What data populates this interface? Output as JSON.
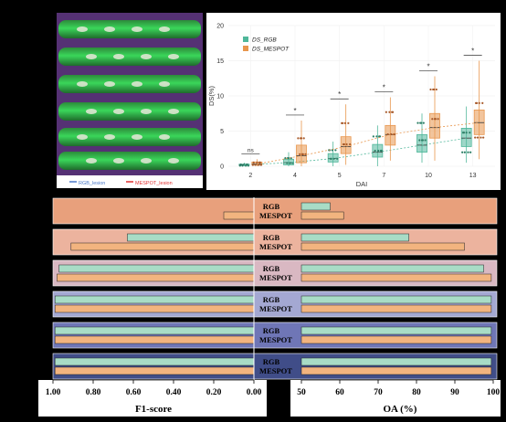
{
  "photo": {
    "legend": [
      {
        "label": "RGB_lesion",
        "color": "#4a78c8"
      },
      {
        "label": "MESPOT_lesion",
        "color": "#e03030"
      }
    ]
  },
  "colors": {
    "rgb": "#4fb79a",
    "mespot": "#e8964d",
    "rgb_bar": "#a8dcc6",
    "mespot_bar": "#f2b47f"
  },
  "chart_data": [
    {
      "type": "box",
      "xlabel": "DAI",
      "ylabel": "DS(%)",
      "categories": [
        "2",
        "4",
        "5",
        "7",
        "10",
        "13"
      ],
      "ylim": [
        0,
        20
      ],
      "yticks": [
        0,
        5,
        10,
        15,
        20
      ],
      "legend": {
        "placement": "top-left",
        "entries": [
          "DS_RGB",
          "DS_MESPOT"
        ]
      },
      "significance": [
        "ns",
        "*",
        "*",
        "*",
        "*",
        "*"
      ],
      "series": [
        {
          "name": "DS_RGB",
          "box": [
            {
              "q1": 0.1,
              "median": 0.2,
              "q3": 0.3,
              "low": 0,
              "high": 0.5
            },
            {
              "q1": 0.2,
              "median": 0.5,
              "q3": 1.0,
              "low": 0,
              "high": 2.0
            },
            {
              "q1": 0.6,
              "median": 1.1,
              "q3": 1.8,
              "low": 0,
              "high": 3.5
            },
            {
              "q1": 1.3,
              "median": 2.0,
              "q3": 3.1,
              "low": 0,
              "high": 5.8
            },
            {
              "q1": 2.0,
              "median": 3.0,
              "q3": 4.5,
              "low": 0.5,
              "high": 7.5
            },
            {
              "q1": 2.8,
              "median": 4.0,
              "q3": 5.4,
              "low": 0.5,
              "high": 8.5
            }
          ]
        },
        {
          "name": "DS_MESPOT",
          "box": [
            {
              "q1": 0.2,
              "median": 0.3,
              "q3": 0.6,
              "low": 0,
              "high": 1.0
            },
            {
              "q1": 0.5,
              "median": 1.5,
              "q3": 3.0,
              "low": 0,
              "high": 6.5
            },
            {
              "q1": 1.8,
              "median": 2.8,
              "q3": 4.2,
              "low": 0.2,
              "high": 8.8
            },
            {
              "q1": 3.0,
              "median": 4.5,
              "q3": 5.8,
              "low": 0.8,
              "high": 9.8
            },
            {
              "q1": 4.0,
              "median": 5.5,
              "q3": 7.5,
              "low": 0.8,
              "high": 12.8
            },
            {
              "q1": 4.5,
              "median": 6.2,
              "q3": 8.0,
              "low": 1.0,
              "high": 15.0
            }
          ]
        }
      ]
    },
    {
      "type": "bar",
      "orientation": "horizontal",
      "rows": [
        {
          "labels": [
            "RGB",
            "MESPOT"
          ],
          "bg": "#e8a07c"
        },
        {
          "labels": [
            "RGB",
            "MESPOT"
          ],
          "bg": "#ecb39e"
        },
        {
          "labels": [
            "RGB",
            "MESPOT"
          ],
          "bg": "#d9b8c2"
        },
        {
          "labels": [
            "RGB",
            "MESPOT"
          ],
          "bg": "#a4a8d2"
        },
        {
          "labels": [
            "RGB",
            "MESPOT"
          ],
          "bg": "#6f76b6"
        },
        {
          "labels": [
            "RGB",
            "MESPOT"
          ],
          "bg": "#404d88"
        }
      ],
      "f1": {
        "xlabel": "F1-score",
        "xlim": [
          1.0,
          0.0
        ],
        "ticks": [
          "1.00",
          "0.80",
          "0.60",
          "0.40",
          "0.20",
          "0.00"
        ],
        "series": [
          {
            "name": "RGB",
            "values": [
              0.0,
              0.63,
              0.97,
              0.99,
              0.99,
              0.99
            ]
          },
          {
            "name": "MESPOT",
            "values": [
              0.15,
              0.91,
              0.98,
              0.99,
              0.99,
              0.99
            ]
          }
        ]
      },
      "oa": {
        "xlabel": "OA (%)",
        "xlim": [
          50,
          100
        ],
        "ticks": [
          "50",
          "60",
          "70",
          "80",
          "90",
          "100"
        ],
        "series": [
          {
            "name": "RGB",
            "values": [
              57.5,
              78,
              97.5,
              99.5,
              99.5,
              99.5
            ]
          },
          {
            "name": "MESPOT",
            "values": [
              61,
              92.5,
              99.5,
              99.5,
              99.5,
              99.5
            ]
          }
        ]
      }
    }
  ]
}
